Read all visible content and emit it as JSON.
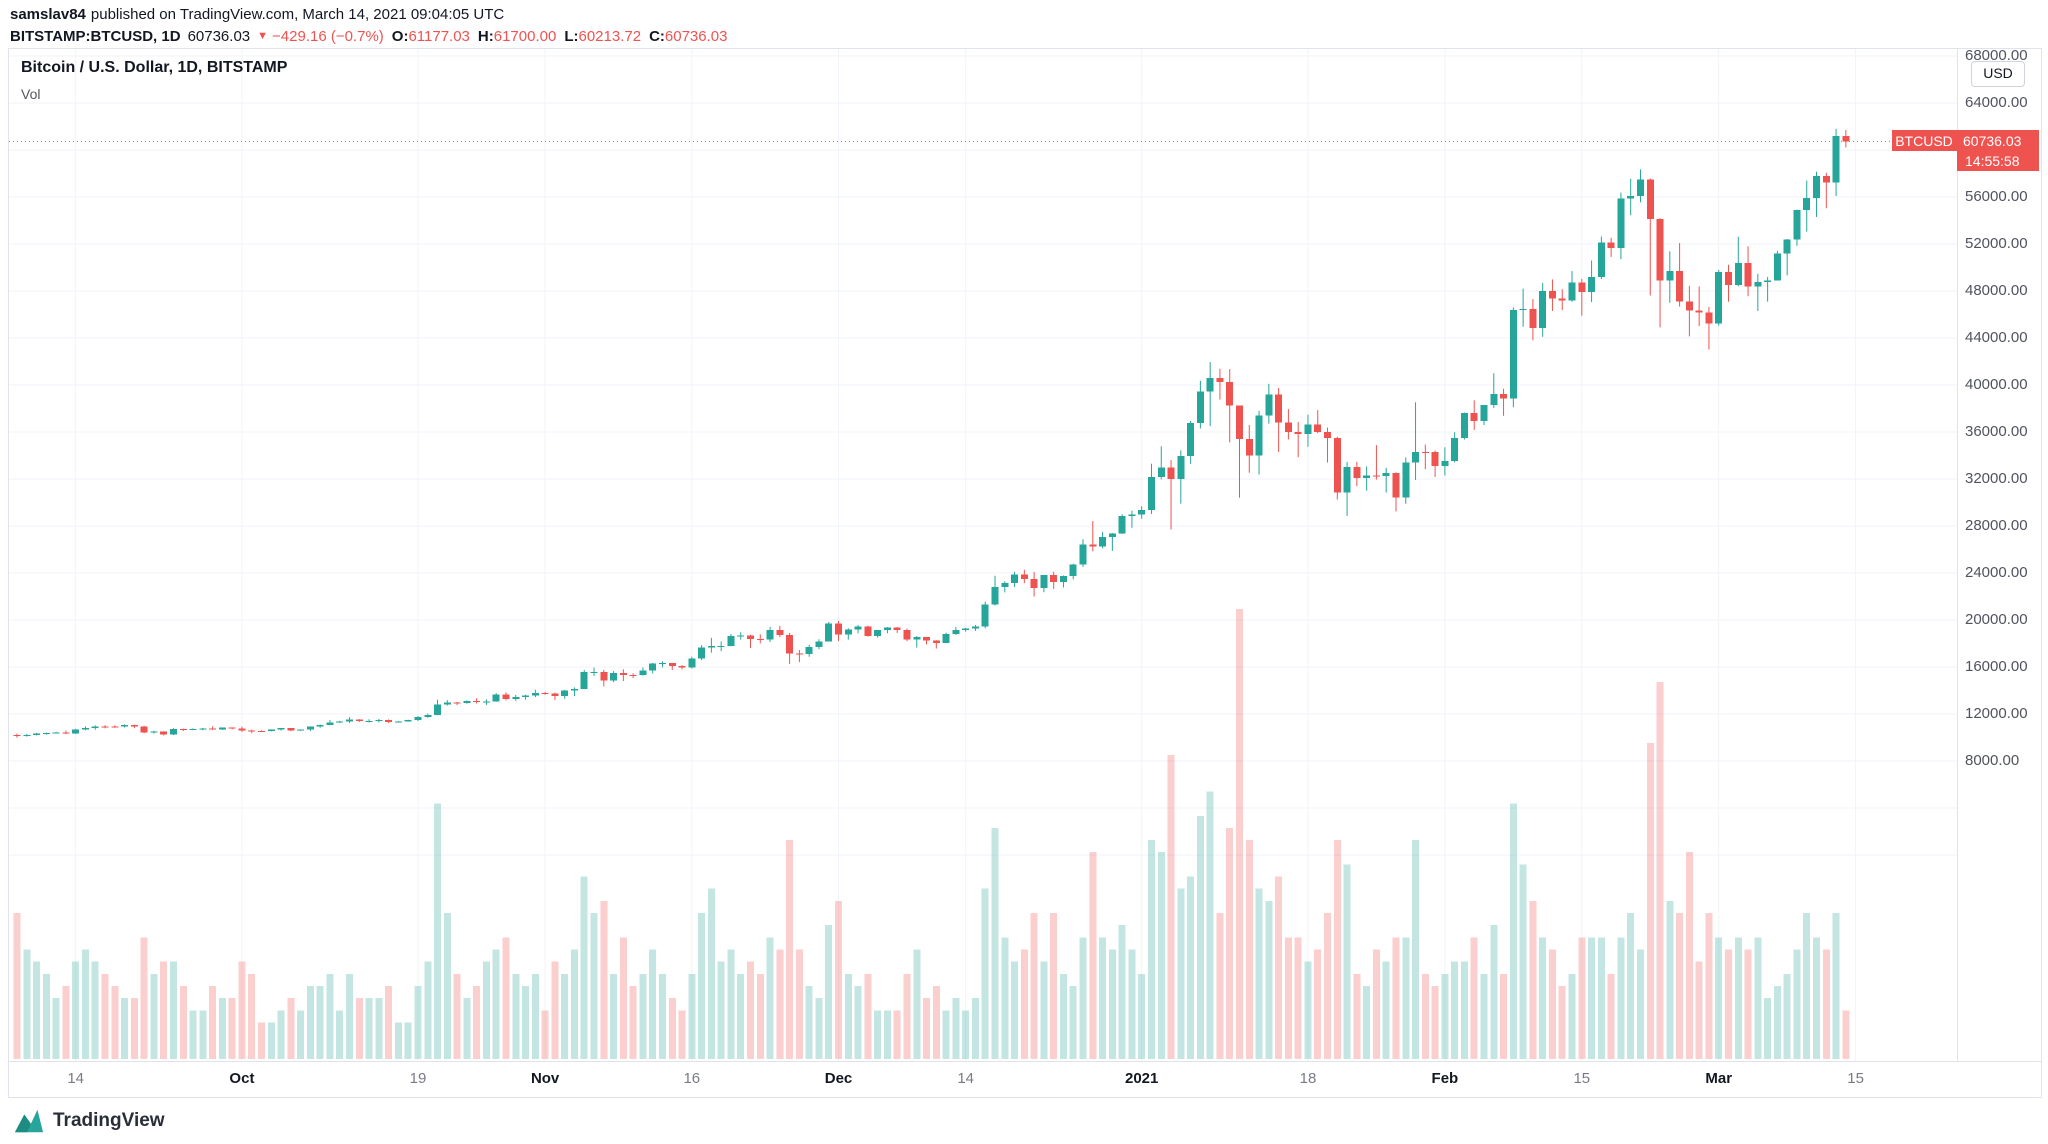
{
  "header": {
    "author": "samslav84",
    "published": "published on TradingView.com, March 14, 2021 09:04:05 UTC",
    "quote": {
      "symbol": "BITSTAMP:BTCUSD, 1D",
      "last": "60736.03",
      "direction_icon": "▼",
      "change": "−429.16 (−0.7%)",
      "o_label": "O:",
      "open": "61177.03",
      "h_label": "H:",
      "high": "61700.00",
      "l_label": "L:",
      "low": "60213.72",
      "c_label": "C:",
      "close": "60736.03"
    }
  },
  "legend": {
    "title": "Bitcoin / U.S. Dollar, 1D, BITSTAMP",
    "indicator": "Vol"
  },
  "axis": {
    "currency": "USD",
    "price_labels": [
      "68000.00",
      "64000.00",
      "60000.00",
      "56000.00",
      "52000.00",
      "48000.00",
      "44000.00",
      "40000.00",
      "36000.00",
      "32000.00",
      "28000.00",
      "24000.00",
      "20000.00",
      "16000.00",
      "12000.00",
      "8000.00"
    ],
    "time_labels": [
      {
        "label": "14",
        "idx": 6,
        "major": false
      },
      {
        "label": "Oct",
        "idx": 23,
        "major": true
      },
      {
        "label": "19",
        "idx": 41,
        "major": false
      },
      {
        "label": "Nov",
        "idx": 54,
        "major": true
      },
      {
        "label": "16",
        "idx": 69,
        "major": false
      },
      {
        "label": "Dec",
        "idx": 84,
        "major": true
      },
      {
        "label": "14",
        "idx": 97,
        "major": false
      },
      {
        "label": "2021",
        "idx": 115,
        "major": true
      },
      {
        "label": "18",
        "idx": 132,
        "major": false
      },
      {
        "label": "Feb",
        "idx": 146,
        "major": true
      },
      {
        "label": "15",
        "idx": 160,
        "major": false
      },
      {
        "label": "Mar",
        "idx": 174,
        "major": true
      },
      {
        "label": "15",
        "idx": 188,
        "major": false
      }
    ]
  },
  "tag": {
    "symbol": "BTCUSD",
    "price": "60736.03",
    "countdown": "14:55:58"
  },
  "footer": {
    "brand": "TradingView"
  },
  "colors": {
    "up": "#26a69a",
    "down": "#ef5350",
    "vol_up": "rgba(38,166,154,0.28)",
    "vol_down": "rgba(239,83,80,0.28)",
    "grid": "#f0f3fa",
    "last_line": "#ef5350"
  },
  "chart_data": {
    "type": "candlestick",
    "symbol": "BITSTAMP:BTCUSD",
    "interval": "1D",
    "title": "Bitcoin / U.S. Dollar, 1D, BITSTAMP",
    "start_date": "2020-09-08",
    "end_date": "2021-03-14",
    "last_price": 60736.03,
    "price_axis": {
      "min_label": 8000,
      "max_label": 68000,
      "step": 4000
    },
    "legend_position": "top-left",
    "grid": true,
    "volume_unit": "relative",
    "columns": [
      "open",
      "high",
      "low",
      "close",
      "volume_rel"
    ],
    "candles": [
      [
        10220,
        10340,
        9980,
        10130,
        12
      ],
      [
        10130,
        10310,
        10070,
        10230,
        9
      ],
      [
        10230,
        10390,
        10180,
        10340,
        8
      ],
      [
        10340,
        10420,
        10230,
        10400,
        7
      ],
      [
        10400,
        10480,
        10340,
        10440,
        5
      ],
      [
        10440,
        10580,
        10280,
        10330,
        6
      ],
      [
        10330,
        10740,
        10290,
        10670,
        8
      ],
      [
        10670,
        10940,
        10620,
        10790,
        9
      ],
      [
        10790,
        11030,
        10660,
        10950,
        8
      ],
      [
        10950,
        11040,
        10780,
        10940,
        7
      ],
      [
        10940,
        11030,
        10830,
        10930,
        6
      ],
      [
        10930,
        11110,
        10850,
        11080,
        5
      ],
      [
        11080,
        11090,
        10790,
        10920,
        5
      ],
      [
        10920,
        10990,
        10360,
        10420,
        10
      ],
      [
        10420,
        10570,
        10330,
        10530,
        7
      ],
      [
        10530,
        10540,
        10170,
        10240,
        8
      ],
      [
        10240,
        10790,
        10200,
        10740,
        8
      ],
      [
        10740,
        10760,
        10560,
        10690,
        6
      ],
      [
        10690,
        10780,
        10620,
        10730,
        4
      ],
      [
        10730,
        10810,
        10620,
        10770,
        4
      ],
      [
        10770,
        10950,
        10650,
        10690,
        6
      ],
      [
        10690,
        10860,
        10640,
        10840,
        5
      ],
      [
        10840,
        10860,
        10690,
        10780,
        5
      ],
      [
        10780,
        10920,
        10470,
        10600,
        8
      ],
      [
        10600,
        10670,
        10380,
        10570,
        7
      ],
      [
        10570,
        10610,
        10510,
        10550,
        3
      ],
      [
        10550,
        10700,
        10520,
        10670,
        3
      ],
      [
        10670,
        10800,
        10590,
        10790,
        4
      ],
      [
        10790,
        10800,
        10540,
        10600,
        5
      ],
      [
        10600,
        10680,
        10550,
        10670,
        4
      ],
      [
        10670,
        10950,
        10560,
        10920,
        6
      ],
      [
        10920,
        11100,
        10830,
        11060,
        6
      ],
      [
        11060,
        11480,
        11050,
        11290,
        7
      ],
      [
        11290,
        11420,
        11240,
        11370,
        4
      ],
      [
        11370,
        11720,
        11240,
        11530,
        7
      ],
      [
        11530,
        11560,
        11320,
        11420,
        5
      ],
      [
        11420,
        11550,
        11280,
        11420,
        5
      ],
      [
        11420,
        11580,
        11280,
        11500,
        5
      ],
      [
        11500,
        11540,
        11220,
        11320,
        6
      ],
      [
        11320,
        11400,
        11270,
        11360,
        3
      ],
      [
        11360,
        11520,
        11340,
        11500,
        3
      ],
      [
        11500,
        11820,
        11400,
        11750,
        6
      ],
      [
        11750,
        12040,
        11680,
        11910,
        8
      ],
      [
        11910,
        13220,
        11890,
        12800,
        21
      ],
      [
        12800,
        13180,
        12720,
        12980,
        12
      ],
      [
        12980,
        13030,
        12760,
        12930,
        7
      ],
      [
        12930,
        13160,
        12880,
        13120,
        5
      ],
      [
        13120,
        13340,
        12890,
        13030,
        6
      ],
      [
        13030,
        13240,
        12770,
        13070,
        8
      ],
      [
        13070,
        13770,
        13050,
        13650,
        9
      ],
      [
        13650,
        13840,
        13160,
        13270,
        10
      ],
      [
        13270,
        13630,
        13120,
        13440,
        7
      ],
      [
        13440,
        13650,
        13210,
        13560,
        6
      ],
      [
        13560,
        14070,
        13430,
        13800,
        7
      ],
      [
        13800,
        13880,
        13630,
        13760,
        4
      ],
      [
        13760,
        13820,
        13200,
        13550,
        8
      ],
      [
        13550,
        14060,
        13290,
        14020,
        7
      ],
      [
        14020,
        14260,
        13520,
        14140,
        9
      ],
      [
        14140,
        15750,
        14100,
        15580,
        15
      ],
      [
        15580,
        15950,
        15230,
        15590,
        12
      ],
      [
        15590,
        15750,
        14350,
        14840,
        13
      ],
      [
        14840,
        15650,
        14710,
        15480,
        7
      ],
      [
        15480,
        15800,
        14810,
        15330,
        10
      ],
      [
        15330,
        15460,
        15050,
        15300,
        6
      ],
      [
        15300,
        15950,
        15270,
        15700,
        7
      ],
      [
        15700,
        16340,
        15450,
        16280,
        9
      ],
      [
        16280,
        16480,
        15960,
        16320,
        7
      ],
      [
        16320,
        16330,
        15750,
        16070,
        5
      ],
      [
        16070,
        16160,
        15790,
        15960,
        4
      ],
      [
        15960,
        16880,
        15870,
        16710,
        7
      ],
      [
        16710,
        17860,
        16580,
        17650,
        12
      ],
      [
        17650,
        18480,
        17220,
        17780,
        14
      ],
      [
        17780,
        18180,
        17350,
        17800,
        8
      ],
      [
        17800,
        18810,
        17760,
        18650,
        9
      ],
      [
        18650,
        18960,
        18330,
        18700,
        7
      ],
      [
        18700,
        18750,
        17620,
        18400,
        8
      ],
      [
        18400,
        18770,
        18010,
        18360,
        7
      ],
      [
        18360,
        19420,
        18120,
        19160,
        10
      ],
      [
        19160,
        19510,
        18550,
        18730,
        9
      ],
      [
        18730,
        18890,
        16260,
        17150,
        18
      ],
      [
        17150,
        17450,
        16410,
        17110,
        9
      ],
      [
        17110,
        17900,
        16870,
        17720,
        6
      ],
      [
        17720,
        18360,
        17520,
        18180,
        5
      ],
      [
        18180,
        19830,
        18180,
        19700,
        11
      ],
      [
        19700,
        19920,
        18200,
        18770,
        13
      ],
      [
        18770,
        19300,
        18330,
        19200,
        7
      ],
      [
        19200,
        19570,
        18870,
        19430,
        6
      ],
      [
        19430,
        19520,
        18590,
        18650,
        7
      ],
      [
        18650,
        19170,
        18500,
        19150,
        4
      ],
      [
        19150,
        19400,
        18870,
        19360,
        4
      ],
      [
        19360,
        19410,
        18900,
        19170,
        4
      ],
      [
        19170,
        19280,
        18200,
        18320,
        7
      ],
      [
        18320,
        18640,
        17650,
        18550,
        9
      ],
      [
        18550,
        18560,
        17920,
        18260,
        5
      ],
      [
        18260,
        18290,
        17570,
        18040,
        6
      ],
      [
        18040,
        18920,
        18030,
        18810,
        4
      ],
      [
        18810,
        19400,
        18720,
        19170,
        5
      ],
      [
        19170,
        19340,
        19010,
        19270,
        4
      ],
      [
        19270,
        19570,
        19070,
        19440,
        5
      ],
      [
        19440,
        21560,
        19300,
        21340,
        14
      ],
      [
        21340,
        23770,
        21230,
        22810,
        19
      ],
      [
        22810,
        23290,
        22350,
        23130,
        10
      ],
      [
        23130,
        24090,
        22800,
        23860,
        8
      ],
      [
        23860,
        24280,
        23130,
        23470,
        9
      ],
      [
        23470,
        24090,
        22000,
        22720,
        12
      ],
      [
        22720,
        23830,
        22360,
        23820,
        8
      ],
      [
        23820,
        24100,
        22650,
        23240,
        12
      ],
      [
        23240,
        23790,
        22770,
        23730,
        7
      ],
      [
        23730,
        24790,
        23460,
        24710,
        6
      ],
      [
        24710,
        26870,
        24520,
        26440,
        10
      ],
      [
        26440,
        28420,
        25850,
        26270,
        17
      ],
      [
        26270,
        27500,
        26100,
        27080,
        10
      ],
      [
        27080,
        27410,
        25880,
        27360,
        9
      ],
      [
        27360,
        29000,
        27320,
        28840,
        11
      ],
      [
        28840,
        29300,
        27850,
        28990,
        9
      ],
      [
        28990,
        29680,
        28620,
        29370,
        7
      ],
      [
        29370,
        33300,
        29030,
        32190,
        18
      ],
      [
        32190,
        34790,
        31960,
        33000,
        17
      ],
      [
        33000,
        33620,
        27700,
        31990,
        25
      ],
      [
        31990,
        34440,
        29900,
        33950,
        14
      ],
      [
        33950,
        36940,
        33290,
        36770,
        15
      ],
      [
        36770,
        40370,
        36300,
        39450,
        20
      ],
      [
        39450,
        41950,
        36500,
        40580,
        22
      ],
      [
        40580,
        41380,
        38760,
        40250,
        12
      ],
      [
        40250,
        41350,
        35110,
        38250,
        19
      ],
      [
        38250,
        38260,
        30400,
        35410,
        37
      ],
      [
        35410,
        36600,
        32530,
        33990,
        18
      ],
      [
        33990,
        37800,
        32380,
        37390,
        14
      ],
      [
        37390,
        40100,
        36710,
        39180,
        13
      ],
      [
        39180,
        39750,
        34300,
        36790,
        15
      ],
      [
        36790,
        37950,
        35370,
        36010,
        10
      ],
      [
        36010,
        36850,
        33850,
        35830,
        10
      ],
      [
        35830,
        37470,
        34740,
        36630,
        8
      ],
      [
        36630,
        37860,
        35900,
        36000,
        9
      ],
      [
        36000,
        36380,
        33400,
        35470,
        12
      ],
      [
        35470,
        35600,
        30250,
        30860,
        18
      ],
      [
        30860,
        33450,
        28850,
        33010,
        16
      ],
      [
        33010,
        33460,
        31390,
        32090,
        7
      ],
      [
        32090,
        33070,
        31000,
        32290,
        6
      ],
      [
        32290,
        34880,
        31950,
        32260,
        9
      ],
      [
        32260,
        32950,
        30840,
        32510,
        8
      ],
      [
        32510,
        32570,
        29240,
        30430,
        10
      ],
      [
        30430,
        33830,
        29890,
        33420,
        10
      ],
      [
        33420,
        38530,
        31920,
        34310,
        18
      ],
      [
        34310,
        34930,
        32830,
        34300,
        7
      ],
      [
        34300,
        34420,
        32170,
        33110,
        6
      ],
      [
        33110,
        34700,
        32300,
        33540,
        7
      ],
      [
        33540,
        35980,
        33420,
        35470,
        8
      ],
      [
        35470,
        37650,
        35360,
        37620,
        8
      ],
      [
        37620,
        38700,
        36180,
        36940,
        10
      ],
      [
        36940,
        38310,
        36600,
        38290,
        7
      ],
      [
        38290,
        41000,
        38050,
        39250,
        11
      ],
      [
        39250,
        39680,
        37380,
        38870,
        7
      ],
      [
        38870,
        46600,
        38100,
        46370,
        21
      ],
      [
        46370,
        48200,
        44960,
        46480,
        16
      ],
      [
        46480,
        47300,
        43800,
        44840,
        13
      ],
      [
        44840,
        48680,
        44100,
        47990,
        10
      ],
      [
        47990,
        48990,
        46300,
        47380,
        9
      ],
      [
        47380,
        48150,
        46370,
        47180,
        6
      ],
      [
        47180,
        49700,
        47080,
        48720,
        7
      ],
      [
        48720,
        49030,
        45900,
        47920,
        10
      ],
      [
        47920,
        50600,
        47050,
        49200,
        10
      ],
      [
        49200,
        52640,
        49010,
        52140,
        10
      ],
      [
        52140,
        52530,
        50900,
        51680,
        7
      ],
      [
        51680,
        56370,
        50710,
        55890,
        10
      ],
      [
        55890,
        57550,
        54450,
        56100,
        12
      ],
      [
        56100,
        58350,
        55550,
        57490,
        9
      ],
      [
        57490,
        57570,
        47620,
        54120,
        26
      ],
      [
        54120,
        54200,
        44900,
        48900,
        31
      ],
      [
        48900,
        51380,
        47000,
        49710,
        13
      ],
      [
        49710,
        52080,
        46670,
        47090,
        12
      ],
      [
        47090,
        48440,
        44140,
        46340,
        17
      ],
      [
        46340,
        48390,
        45010,
        46160,
        8
      ],
      [
        46160,
        46640,
        43020,
        45240,
        12
      ],
      [
        45240,
        49790,
        45050,
        49620,
        10
      ],
      [
        49620,
        50230,
        47080,
        48500,
        9
      ],
      [
        48500,
        52620,
        48400,
        50380,
        10
      ],
      [
        50380,
        51800,
        47550,
        48370,
        9
      ],
      [
        48370,
        49460,
        46300,
        48770,
        10
      ],
      [
        48770,
        49200,
        47100,
        48900,
        5
      ],
      [
        48900,
        51420,
        48890,
        51210,
        6
      ],
      [
        51210,
        52430,
        49330,
        52400,
        7
      ],
      [
        52400,
        54930,
        51850,
        54900,
        9
      ],
      [
        54900,
        57400,
        53050,
        55900,
        12
      ],
      [
        55900,
        58150,
        54300,
        57800,
        10
      ],
      [
        57800,
        58060,
        55040,
        57240,
        9
      ],
      [
        57240,
        61800,
        56080,
        61177,
        12
      ],
      [
        61177,
        61700,
        60214,
        60736.03,
        4
      ]
    ]
  }
}
